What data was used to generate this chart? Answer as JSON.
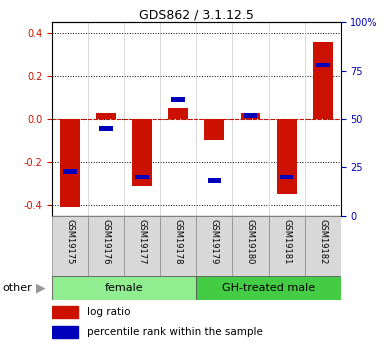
{
  "title": "GDS862 / 3.1.12.5",
  "samples": [
    "GSM19175",
    "GSM19176",
    "GSM19177",
    "GSM19178",
    "GSM19179",
    "GSM19180",
    "GSM19181",
    "GSM19182"
  ],
  "log_ratio": [
    -0.41,
    0.03,
    -0.31,
    0.05,
    -0.1,
    0.03,
    -0.35,
    0.36
  ],
  "percentile_rank": [
    23,
    45,
    20,
    60,
    18,
    52,
    20,
    78
  ],
  "groups": [
    {
      "label": "female",
      "start": 0,
      "end": 4,
      "color": "#90ee90"
    },
    {
      "label": "GH-treated male",
      "start": 4,
      "end": 8,
      "color": "#44cc44"
    }
  ],
  "ylim_left": [
    -0.45,
    0.45
  ],
  "ylim_right": [
    0,
    100
  ],
  "left_ticks": [
    -0.4,
    -0.2,
    0.0,
    0.2,
    0.4
  ],
  "right_ticks": [
    0,
    25,
    50,
    75,
    100
  ],
  "right_tick_labels": [
    "0",
    "25",
    "50",
    "75",
    "100%"
  ],
  "bar_color_red": "#cc1100",
  "bar_color_blue": "#0000bb",
  "grid_color": "#000000",
  "zero_line_color": "#cc1100",
  "background_color": "#ffffff",
  "plot_bg_color": "#ffffff",
  "other_label": "other",
  "legend_red_label": "log ratio",
  "legend_blue_label": "percentile rank within the sample",
  "bar_width": 0.55,
  "blue_bar_height": 0.022,
  "blue_bar_width": 0.38
}
